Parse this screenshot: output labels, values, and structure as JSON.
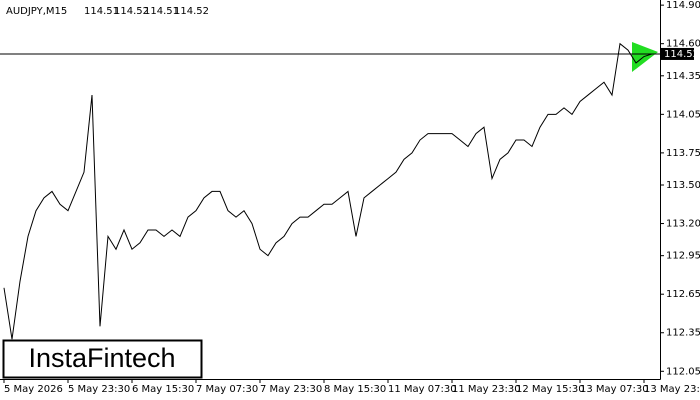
{
  "chart_data": {
    "type": "line",
    "symbol": "AUDJPY,M15",
    "ohlc": [
      114.51,
      114.52,
      114.51,
      114.52
    ],
    "current_price": 114.52,
    "color": "#000000",
    "categories": [
      "5 May 2026",
      null,
      null,
      null,
      null,
      null,
      null,
      null,
      "5 May 23:30",
      null,
      null,
      null,
      null,
      null,
      null,
      null,
      "6 May 15:30",
      null,
      null,
      null,
      null,
      null,
      null,
      null,
      "7 May 07:30",
      null,
      null,
      null,
      null,
      null,
      null,
      null,
      "7 May 23:30",
      null,
      null,
      null,
      null,
      null,
      null,
      null,
      "8 May 15:30",
      null,
      null,
      null,
      null,
      null,
      null,
      null,
      "11 May 07:30",
      null,
      null,
      null,
      null,
      null,
      null,
      null,
      "11 May 23:30",
      null,
      null,
      null,
      null,
      null,
      null,
      null,
      "12 May 15:30",
      null,
      null,
      null,
      null,
      null,
      null,
      null,
      "13 May 07:30",
      null,
      null,
      null,
      null,
      null,
      null,
      null,
      "13 May 23:30",
      null
    ],
    "values": [
      112.7,
      112.3,
      112.75,
      113.1,
      113.3,
      113.4,
      113.45,
      113.35,
      113.3,
      113.45,
      113.6,
      114.2,
      112.4,
      113.1,
      113.0,
      113.15,
      113.0,
      113.05,
      113.15,
      113.15,
      113.1,
      113.15,
      113.1,
      113.25,
      113.3,
      113.4,
      113.45,
      113.45,
      113.3,
      113.25,
      113.3,
      113.2,
      113.0,
      112.95,
      113.05,
      113.1,
      113.2,
      113.25,
      113.25,
      113.3,
      113.35,
      113.35,
      113.4,
      113.45,
      113.1,
      113.4,
      113.45,
      113.5,
      113.55,
      113.6,
      113.7,
      113.75,
      113.85,
      113.9,
      113.9,
      113.9,
      113.9,
      113.85,
      113.8,
      113.9,
      113.95,
      113.55,
      113.7,
      113.75,
      113.85,
      113.85,
      113.8,
      113.95,
      114.05,
      114.05,
      114.1,
      114.05,
      114.15,
      114.2,
      114.25,
      114.3,
      114.2,
      114.6,
      114.55,
      114.45,
      114.5,
      114.52
    ],
    "ylim": [
      111.99,
      114.94
    ],
    "yticks": [
      112.05,
      112.35,
      112.65,
      112.95,
      {
        "value": 113.2,
        "label": "113.20"
      },
      {
        "value": 113.5,
        "label": "113.50"
      },
      113.75,
      114.05,
      114.35,
      {
        "value": 114.6,
        "label": "114.60"
      },
      {
        "value": 114.9,
        "label": "114.90"
      }
    ]
  },
  "brand": "InstaFintech"
}
